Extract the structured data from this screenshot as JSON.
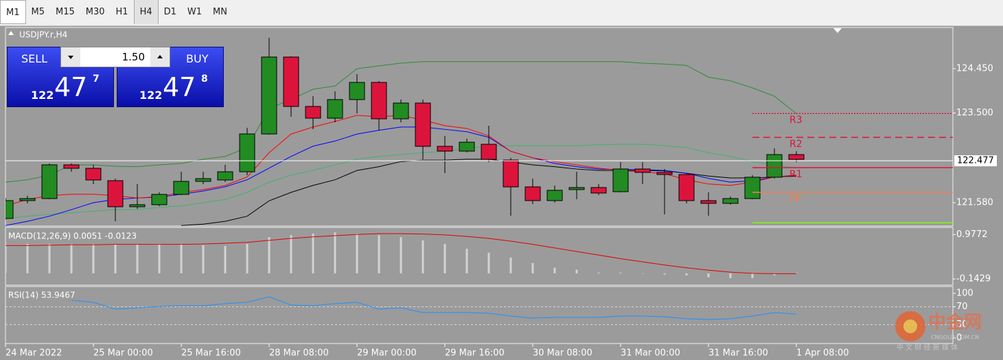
{
  "toolbar": {
    "timeframes": [
      "M1",
      "M5",
      "M15",
      "M30",
      "H1",
      "H4",
      "D1",
      "W1",
      "MN"
    ],
    "active": "H4"
  },
  "trade_panel": {
    "sell": {
      "label": "SELL",
      "price": [
        "122",
        "47",
        "7"
      ]
    },
    "lot": "1.50",
    "buy": {
      "label": "BUY",
      "price": [
        "122",
        "47",
        "8"
      ]
    }
  },
  "watermark": {
    "brand": "中金网",
    "site": "CNGOLD.COM.CN",
    "slogan": "中 文 财 经 新 媒 体"
  },
  "chart_data": [
    {
      "type": "candlestick",
      "title": "USDJPY.r,H4",
      "categories": [
        "24 Mar 2022",
        null,
        null,
        null,
        "25 Mar 00:00",
        null,
        null,
        null,
        "25 Mar 16:00",
        null,
        null,
        null,
        "28 Mar 08:00",
        null,
        null,
        null,
        "29 Mar 00:00",
        null,
        null,
        null,
        "29 Mar 16:00",
        null,
        null,
        null,
        "30 Mar 08:00",
        null,
        null,
        null,
        "31 Mar 00:00",
        null,
        null,
        null,
        "31 Mar 16:00",
        null,
        null,
        null,
        "1 Apr 08:00"
      ],
      "open": [
        121.242,
        121.624,
        121.668,
        122.39,
        122.316,
        122.051,
        121.492,
        121.536,
        121.757,
        122.036,
        122.066,
        122.242,
        123.052,
        124.7,
        123.641,
        123.39,
        123.788,
        124.156,
        123.376,
        123.714,
        122.787,
        122.684,
        122.831,
        122.493,
        121.918,
        121.624,
        121.86,
        121.904,
        121.815,
        122.301,
        122.228,
        122.183,
        121.624,
        121.565,
        121.668,
        122.125,
        122.61
      ],
      "high": [
        121.683,
        121.727,
        122.419,
        122.419,
        122.39,
        122.095,
        121.977,
        121.801,
        122.242,
        122.242,
        122.39,
        123.184,
        125.112,
        124.715,
        123.861,
        123.964,
        124.332,
        124.185,
        123.788,
        123.788,
        123.008,
        122.949,
        123.228,
        122.537,
        122.095,
        121.948,
        122.242,
        121.977,
        122.448,
        122.448,
        122.301,
        122.213,
        121.801,
        121.712,
        122.169,
        122.743,
        122.684
      ],
      "low": [
        121.212,
        121.565,
        121.654,
        122.242,
        121.977,
        121.183,
        121.448,
        121.506,
        121.742,
        121.977,
        122.022,
        122.169,
        123.037,
        123.42,
        123.155,
        123.302,
        123.493,
        123.125,
        123.302,
        122.507,
        122.213,
        122.654,
        122.448,
        121.3,
        121.551,
        121.58,
        121.654,
        121.742,
        121.801,
        121.977,
        121.33,
        121.565,
        121.3,
        121.536,
        121.654,
        122.095,
        122.448
      ],
      "close": [
        121.624,
        121.668,
        122.39,
        122.316,
        122.066,
        121.492,
        121.536,
        121.757,
        122.036,
        122.095,
        122.242,
        123.052,
        124.7,
        123.641,
        123.39,
        123.788,
        124.156,
        123.376,
        123.714,
        122.787,
        122.684,
        122.875,
        122.507,
        121.918,
        121.624,
        121.845,
        121.904,
        121.786,
        122.301,
        122.228,
        122.183,
        121.624,
        121.565,
        121.668,
        122.125,
        122.61,
        122.507
      ],
      "up_color": "#228b22",
      "down_color": "#dc143c",
      "overlays": [
        {
          "color": "#2e8b3a",
          "values": [
            122.02,
            122.07,
            122.17,
            122.39,
            122.39,
            122.36,
            122.35,
            122.39,
            122.42,
            122.51,
            122.57,
            122.76,
            123.6,
            123.79,
            124.01,
            124.08,
            124.45,
            124.51,
            124.57,
            124.6,
            124.6,
            124.6,
            124.6,
            124.6,
            124.6,
            124.6,
            124.6,
            124.6,
            124.6,
            124.57,
            124.55,
            124.52,
            124.27,
            124.19,
            124.04,
            123.86,
            123.49
          ]
        },
        {
          "color": "#3cb371",
          "values": [
            121.24,
            121.29,
            121.33,
            121.36,
            121.4,
            121.43,
            121.43,
            121.48,
            121.51,
            121.58,
            121.65,
            121.8,
            122.02,
            122.17,
            122.27,
            122.39,
            122.51,
            122.57,
            122.61,
            122.65,
            122.68,
            122.74,
            122.79,
            122.8,
            122.8,
            122.8,
            122.8,
            122.82,
            122.83,
            122.83,
            122.8,
            122.76,
            122.65,
            122.57,
            122.46,
            122.39,
            122.32
          ]
        },
        {
          "color": "#000000",
          "values": [
            null,
            null,
            null,
            null,
            null,
            null,
            null,
            null,
            121.09,
            121.12,
            121.18,
            121.29,
            121.62,
            121.8,
            121.95,
            122.07,
            122.27,
            122.35,
            122.46,
            122.49,
            122.49,
            122.51,
            122.51,
            122.45,
            122.39,
            122.35,
            122.3,
            122.27,
            122.27,
            122.27,
            122.26,
            122.21,
            122.15,
            122.11,
            122.11,
            122.13,
            122.15
          ]
        },
        {
          "color": "#0000ff",
          "values": [
            121.09,
            121.18,
            121.29,
            121.43,
            121.58,
            121.65,
            121.68,
            121.7,
            121.76,
            121.83,
            121.92,
            122.07,
            122.32,
            122.57,
            122.79,
            122.9,
            123.05,
            123.13,
            123.2,
            123.2,
            123.15,
            123.1,
            122.98,
            122.68,
            122.54,
            122.42,
            122.35,
            122.3,
            122.29,
            122.29,
            122.27,
            122.21,
            122.1,
            122.02,
            122.05,
            122.13,
            122.17
          ]
        },
        {
          "color": "#ff0000",
          "values": [
            121.51,
            121.65,
            121.73,
            121.76,
            121.76,
            121.73,
            121.68,
            121.71,
            121.8,
            121.86,
            121.95,
            122.13,
            122.65,
            123.05,
            123.2,
            123.32,
            123.45,
            123.42,
            123.45,
            123.35,
            123.23,
            123.17,
            123.01,
            122.68,
            122.54,
            122.46,
            122.39,
            122.32,
            122.27,
            122.24,
            122.2,
            122.07,
            121.98,
            121.95,
            122.02,
            122.13,
            122.17
          ]
        }
      ],
      "levels": [
        {
          "label": "R3",
          "value": 123.49,
          "color": "#dc143c",
          "style": "dotted"
        },
        {
          "label": "R2",
          "value": 122.98,
          "color": "#dc143c",
          "style": "dashed"
        },
        {
          "label": "R1",
          "value": 122.33,
          "color": "#dc143c",
          "style": "solid"
        },
        {
          "label": "PP",
          "value": 121.8,
          "color": "#f08050",
          "style": "solid"
        },
        {
          "value": 121.15,
          "color": "#7cfc00",
          "style": "solid"
        }
      ],
      "current_price": 122.477,
      "ylim": [
        121.094,
        125.333
      ],
      "yticks": [
        {
          "value": 124.45,
          "label": "124.450"
        },
        {
          "value": 123.5,
          "label": "123.500"
        },
        {
          "value": 121.58,
          "label": "121.580"
        }
      ]
    },
    {
      "type": "macd",
      "title": "MACD(12,26,9) 0.0051 -0.0123",
      "series": [
        {
          "style": "bar",
          "color": "#d3d3d3",
          "values": [
            0.74,
            0.74,
            0.74,
            0.74,
            0.74,
            0.74,
            0.74,
            0.74,
            0.74,
            0.71,
            0.69,
            0.74,
            0.91,
            0.96,
            1.0,
            1.03,
            1.0,
            0.96,
            0.91,
            0.83,
            0.74,
            0.62,
            0.52,
            0.4,
            0.26,
            0.14,
            0.09,
            0.02,
            0.02,
            0.0,
            -0.03,
            -0.05,
            -0.1,
            -0.12,
            -0.12,
            -0.05,
            0.01
          ]
        },
        {
          "style": "line",
          "color": "#e00000",
          "values": [
            0.7,
            0.7,
            0.71,
            0.72,
            0.72,
            0.73,
            0.73,
            0.73,
            0.73,
            0.74,
            0.76,
            0.78,
            0.83,
            0.88,
            0.92,
            0.95,
            0.98,
            1.0,
            1.0,
            0.99,
            0.97,
            0.93,
            0.88,
            0.81,
            0.73,
            0.64,
            0.55,
            0.46,
            0.37,
            0.29,
            0.21,
            0.14,
            0.08,
            0.03,
            0.0,
            -0.01,
            -0.01
          ]
        }
      ],
      "ylim": [
        -0.28,
        1.14
      ],
      "yticks": [
        0.9772,
        -0.1429
      ]
    },
    {
      "type": "line",
      "title": "RSI(14) 53.9467",
      "series": [
        {
          "color": "#1e90ff",
          "values": [
            null,
            null,
            null,
            84.6,
            80.0,
            64.6,
            67.7,
            70.8,
            72.3,
            72.3,
            76.9,
            80.0,
            92.3,
            73.8,
            72.3,
            76.9,
            80.0,
            64.6,
            67.7,
            56.9,
            56.9,
            56.9,
            55.4,
            49.2,
            44.6,
            46.2,
            46.2,
            46.2,
            49.2,
            49.2,
            47.7,
            43.1,
            41.5,
            43.1,
            49.2,
            56.9,
            53.8
          ]
        }
      ],
      "levels": [
        70,
        30
      ],
      "ylim": [
        -12.3,
        113.8
      ],
      "yticks": [
        100,
        70,
        30,
        0
      ]
    }
  ]
}
